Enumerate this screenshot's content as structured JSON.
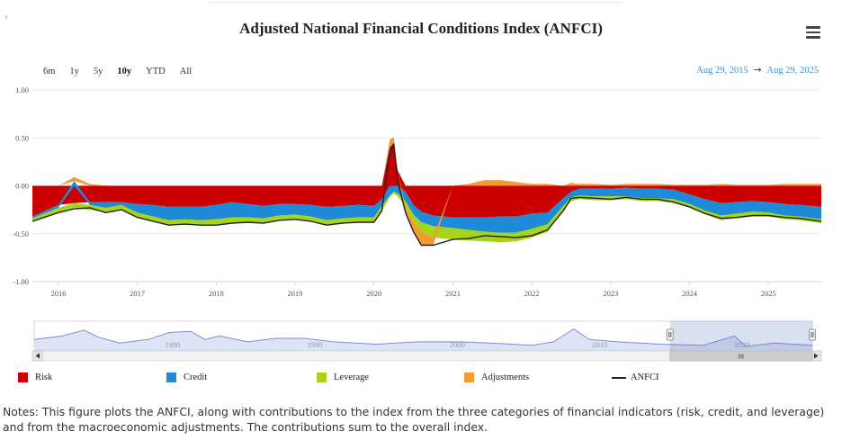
{
  "title": "Adjusted National Financial Conditions Index (ANFCI)",
  "range_buttons": [
    "6m",
    "1y",
    "5y",
    "10y",
    "YTD",
    "All"
  ],
  "active_range": "10y",
  "date_from": "Aug 29, 2015",
  "date_arrow": "→",
  "date_to": "Aug 29, 2025",
  "navigator_years": [
    "1980",
    "1990",
    "2000",
    "2010",
    "2020"
  ],
  "scroll_handle": "III",
  "legend": [
    {
      "label": "Risk",
      "color": "#cc0000"
    },
    {
      "label": "Credit",
      "color": "#1f8ad6"
    },
    {
      "label": "Leverage",
      "color": "#a6d41a"
    },
    {
      "label": "Adjustments",
      "color": "#f39a33"
    },
    {
      "label": "ANFCI",
      "color": "#222222"
    }
  ],
  "notes": "Notes: This figure plots the ANFCI, along with contributions to the index from the three categories of financial indicators (risk, credit, and leverage) and from the macroeconomic adjustments. The contributions sum to the overall index.",
  "chart_data": {
    "type": "area",
    "title": "Adjusted National Financial Conditions Index (ANFCI)",
    "ylim": [
      -1.0,
      1.0
    ],
    "yticks": [
      "1.00",
      "0.50",
      "0.00",
      "-0.50",
      "-1.00"
    ],
    "xticks": [
      "2016",
      "2017",
      "2018",
      "2019",
      "2020",
      "2021",
      "2022",
      "2023",
      "2024",
      "2025"
    ],
    "x": [
      2015.67,
      2016.0,
      2016.2,
      2016.4,
      2016.6,
      2016.8,
      2017.0,
      2017.2,
      2017.4,
      2017.6,
      2017.8,
      2018.0,
      2018.2,
      2018.4,
      2018.6,
      2018.8,
      2019.0,
      2019.2,
      2019.4,
      2019.6,
      2019.8,
      2020.0,
      2020.1,
      2020.2,
      2020.25,
      2020.3,
      2020.4,
      2020.5,
      2020.6,
      2020.75,
      2021.0,
      2021.2,
      2021.4,
      2021.6,
      2021.8,
      2022.0,
      2022.2,
      2022.4,
      2022.5,
      2022.6,
      2022.8,
      2023.0,
      2023.2,
      2023.4,
      2023.6,
      2023.8,
      2024.0,
      2024.2,
      2024.4,
      2024.6,
      2024.8,
      2025.0,
      2025.2,
      2025.4,
      2025.67
    ],
    "series": [
      {
        "name": "Risk",
        "color": "#cc0000",
        "values": [
          -0.32,
          -0.2,
          -0.18,
          -0.17,
          -0.17,
          -0.17,
          -0.19,
          -0.2,
          -0.22,
          -0.22,
          -0.22,
          -0.2,
          -0.17,
          -0.19,
          -0.21,
          -0.19,
          -0.19,
          -0.2,
          -0.22,
          -0.21,
          -0.2,
          -0.21,
          -0.14,
          0.4,
          0.45,
          0.16,
          -0.06,
          -0.2,
          -0.27,
          -0.31,
          -0.33,
          -0.33,
          -0.33,
          -0.32,
          -0.32,
          -0.29,
          -0.28,
          -0.13,
          -0.06,
          -0.03,
          -0.03,
          -0.03,
          -0.02,
          -0.03,
          -0.03,
          -0.04,
          -0.09,
          -0.14,
          -0.18,
          -0.17,
          -0.16,
          -0.17,
          -0.19,
          -0.2,
          -0.22
        ]
      },
      {
        "name": "Credit",
        "color": "#1f8ad6",
        "values": [
          -0.02,
          -0.03,
          0.05,
          -0.03,
          -0.06,
          -0.03,
          -0.09,
          -0.12,
          -0.14,
          -0.13,
          -0.14,
          -0.15,
          -0.16,
          -0.14,
          -0.13,
          -0.12,
          -0.11,
          -0.12,
          -0.14,
          -0.13,
          -0.13,
          -0.12,
          -0.07,
          -0.1,
          -0.06,
          -0.08,
          -0.1,
          -0.1,
          -0.11,
          -0.11,
          -0.11,
          -0.13,
          -0.15,
          -0.17,
          -0.17,
          -0.16,
          -0.12,
          -0.08,
          -0.06,
          -0.07,
          -0.08,
          -0.08,
          -0.09,
          -0.1,
          -0.1,
          -0.1,
          -0.1,
          -0.12,
          -0.13,
          -0.12,
          -0.11,
          -0.11,
          -0.12,
          -0.12,
          -0.13
        ]
      },
      {
        "name": "Leverage",
        "color": "#a6d41a",
        "values": [
          -0.03,
          -0.05,
          -0.05,
          -0.05,
          -0.05,
          -0.05,
          -0.05,
          -0.05,
          -0.05,
          -0.05,
          -0.05,
          -0.06,
          -0.06,
          -0.05,
          -0.05,
          -0.05,
          -0.05,
          -0.05,
          -0.05,
          -0.05,
          -0.05,
          -0.05,
          -0.05,
          -0.02,
          -0.02,
          -0.03,
          -0.06,
          -0.08,
          -0.1,
          -0.12,
          -0.12,
          -0.11,
          -0.1,
          -0.1,
          -0.09,
          -0.09,
          -0.08,
          -0.05,
          -0.04,
          -0.04,
          -0.04,
          -0.04,
          -0.03,
          -0.03,
          -0.03,
          -0.04,
          -0.04,
          -0.04,
          -0.05,
          -0.05,
          -0.05,
          -0.04,
          -0.04,
          -0.04,
          -0.04
        ]
      },
      {
        "name": "Adjustments",
        "color": "#f39a33",
        "values": [
          0.0,
          0.0,
          0.04,
          0.02,
          0.0,
          0.0,
          0.0,
          0.0,
          0.0,
          0.0,
          0.0,
          0.0,
          0.0,
          0.0,
          0.0,
          0.0,
          0.0,
          0.0,
          0.0,
          0.0,
          0.0,
          0.0,
          0.0,
          0.08,
          0.06,
          0.0,
          -0.06,
          -0.1,
          -0.14,
          -0.08,
          0.0,
          0.02,
          0.06,
          0.06,
          0.04,
          0.02,
          0.02,
          0.0,
          0.03,
          0.02,
          0.02,
          0.01,
          0.02,
          0.02,
          0.02,
          0.01,
          0.01,
          0.01,
          0.02,
          0.01,
          0.01,
          0.01,
          0.02,
          0.02,
          0.02
        ]
      },
      {
        "name": "ANFCI",
        "color": "#222222",
        "values": [
          -0.37,
          -0.28,
          -0.24,
          -0.23,
          -0.28,
          -0.25,
          -0.33,
          -0.37,
          -0.41,
          -0.4,
          -0.41,
          -0.41,
          -0.39,
          -0.38,
          -0.39,
          -0.36,
          -0.35,
          -0.37,
          -0.41,
          -0.39,
          -0.38,
          -0.38,
          -0.26,
          0.36,
          0.43,
          0.05,
          -0.28,
          -0.48,
          -0.62,
          -0.62,
          -0.56,
          -0.55,
          -0.52,
          -0.53,
          -0.54,
          -0.52,
          -0.46,
          -0.26,
          -0.13,
          -0.12,
          -0.13,
          -0.14,
          -0.12,
          -0.14,
          -0.14,
          -0.17,
          -0.22,
          -0.29,
          -0.34,
          -0.33,
          -0.31,
          -0.31,
          -0.33,
          -0.34,
          -0.37
        ]
      }
    ],
    "navigator": {
      "x": [
        1971,
        1973,
        1974.5,
        1975.5,
        1977,
        1979,
        1980.5,
        1982,
        1983,
        1984,
        1986,
        1988,
        1990,
        1992,
        1995,
        1998,
        2001,
        2003,
        2006,
        2007.5,
        2008.9,
        2010,
        2012,
        2015,
        2018,
        2020.2,
        2021,
        2023,
        2025.67
      ],
      "values": [
        0.1,
        0.4,
        0.9,
        0.3,
        -0.2,
        0.1,
        0.7,
        0.8,
        0.1,
        0.4,
        -0.1,
        0.2,
        0.2,
        -0.1,
        -0.3,
        -0.1,
        -0.1,
        -0.2,
        -0.4,
        -0.1,
        1.0,
        0.1,
        -0.1,
        -0.3,
        -0.4,
        0.4,
        -0.5,
        -0.2,
        -0.4
      ]
    }
  }
}
